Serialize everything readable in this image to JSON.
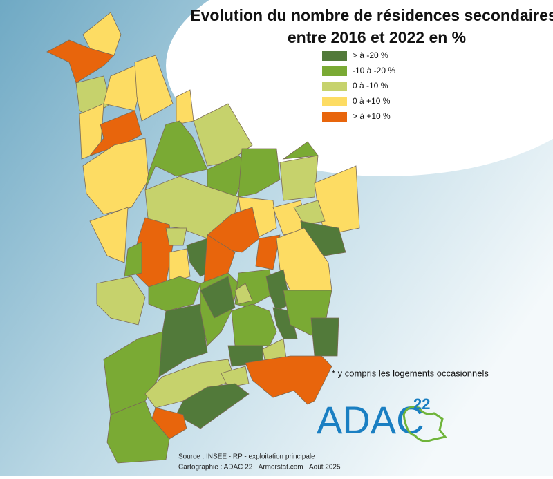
{
  "title": [
    "Evolution du nombre de résidences secondaires*",
    "entre 2016 et 2022 en %"
  ],
  "legend": [
    {
      "label": "> à -20 %",
      "color": "#527a3a"
    },
    {
      "label": "-10 à -20 %",
      "color": "#7aaa34"
    },
    {
      "label": "0 à -10 %",
      "color": "#c6d26c"
    },
    {
      "label": "0 à +10 %",
      "color": "#fddc63"
    },
    {
      "label": "> à +10 %",
      "color": "#e8650c"
    }
  ],
  "note": "* y compris les logements occasionnels",
  "logo": {
    "text": "ADAC",
    "superscript": "22"
  },
  "source": [
    "Source : INSEE - RP - exploitation principale",
    "Cartographie : ADAC 22 - Armorstat.com - Août 2025"
  ]
}
